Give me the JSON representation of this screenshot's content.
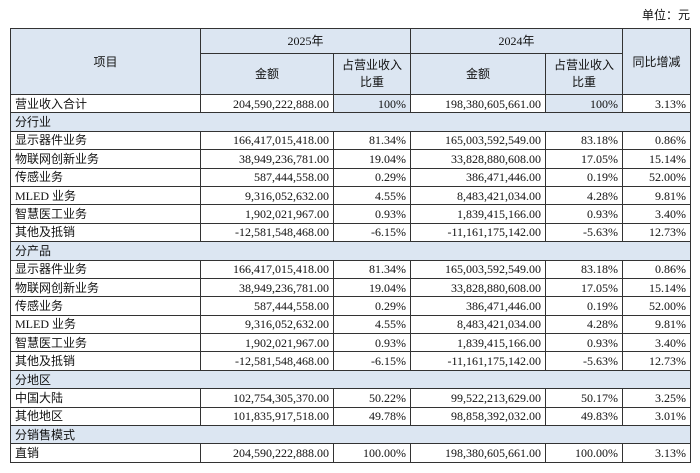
{
  "header": {
    "unit": "单位：元"
  },
  "table": {
    "head": {
      "item": "项目",
      "year_a": "2025年",
      "year_b": "2024年",
      "change": "同比增减",
      "amount_a": "金额",
      "share_a": "占营业收入比重",
      "amount_b": "金额",
      "share_b": "占营业收入比重"
    },
    "rows": [
      [
        "营业收入合计",
        "204,590,222,888.00",
        "100%",
        "198,380,605,661.00",
        "100%",
        "3.13%"
      ],
      [
        "分行业"
      ],
      [
        "显示器件业务",
        "166,417,015,418.00",
        "81.34%",
        "165,003,592,549.00",
        "83.18%",
        "0.86%"
      ],
      [
        "物联网创新业务",
        "38,949,236,781.00",
        "19.04%",
        "33,828,880,608.00",
        "17.05%",
        "15.14%"
      ],
      [
        "传感业务",
        "587,444,558.00",
        "0.29%",
        "386,471,446.00",
        "0.19%",
        "52.00%"
      ],
      [
        "MLED 业务",
        "9,316,052,632.00",
        "4.55%",
        "8,483,421,034.00",
        "4.28%",
        "9.81%"
      ],
      [
        "智慧医工业务",
        "1,902,021,967.00",
        "0.93%",
        "1,839,415,166.00",
        "0.93%",
        "3.40%"
      ],
      [
        "其他及抵销",
        "-12,581,548,468.00",
        "-6.15%",
        "-11,161,175,142.00",
        "-5.63%",
        "12.73%"
      ],
      [
        "分产品"
      ],
      [
        "显示器件业务",
        "166,417,015,418.00",
        "81.34%",
        "165,003,592,549.00",
        "83.18%",
        "0.86%"
      ],
      [
        "物联网创新业务",
        "38,949,236,781.00",
        "19.04%",
        "33,828,880,608.00",
        "17.05%",
        "15.14%"
      ],
      [
        "传感业务",
        "587,444,558.00",
        "0.29%",
        "386,471,446.00",
        "0.19%",
        "52.00%"
      ],
      [
        "MLED 业务",
        "9,316,052,632.00",
        "4.55%",
        "8,483,421,034.00",
        "4.28%",
        "9.81%"
      ],
      [
        "智慧医工业务",
        "1,902,021,967.00",
        "0.93%",
        "1,839,415,166.00",
        "0.93%",
        "3.40%"
      ],
      [
        "其他及抵销",
        "-12,581,548,468.00",
        "-6.15%",
        "-11,161,175,142.00",
        "-5.63%",
        "12.73%"
      ],
      [
        "分地区"
      ],
      [
        "中国大陆",
        "102,754,305,370.00",
        "50.22%",
        "99,522,213,629.00",
        "50.17%",
        "3.25%"
      ],
      [
        "其他地区",
        "101,835,917,518.00",
        "49.78%",
        "98,858,392,032.00",
        "49.83%",
        "3.01%"
      ],
      [
        "分销售模式"
      ],
      [
        "直销",
        "204,590,222,888.00",
        "100.00%",
        "198,380,605,661.00",
        "100.00%",
        "3.13%"
      ]
    ]
  }
}
